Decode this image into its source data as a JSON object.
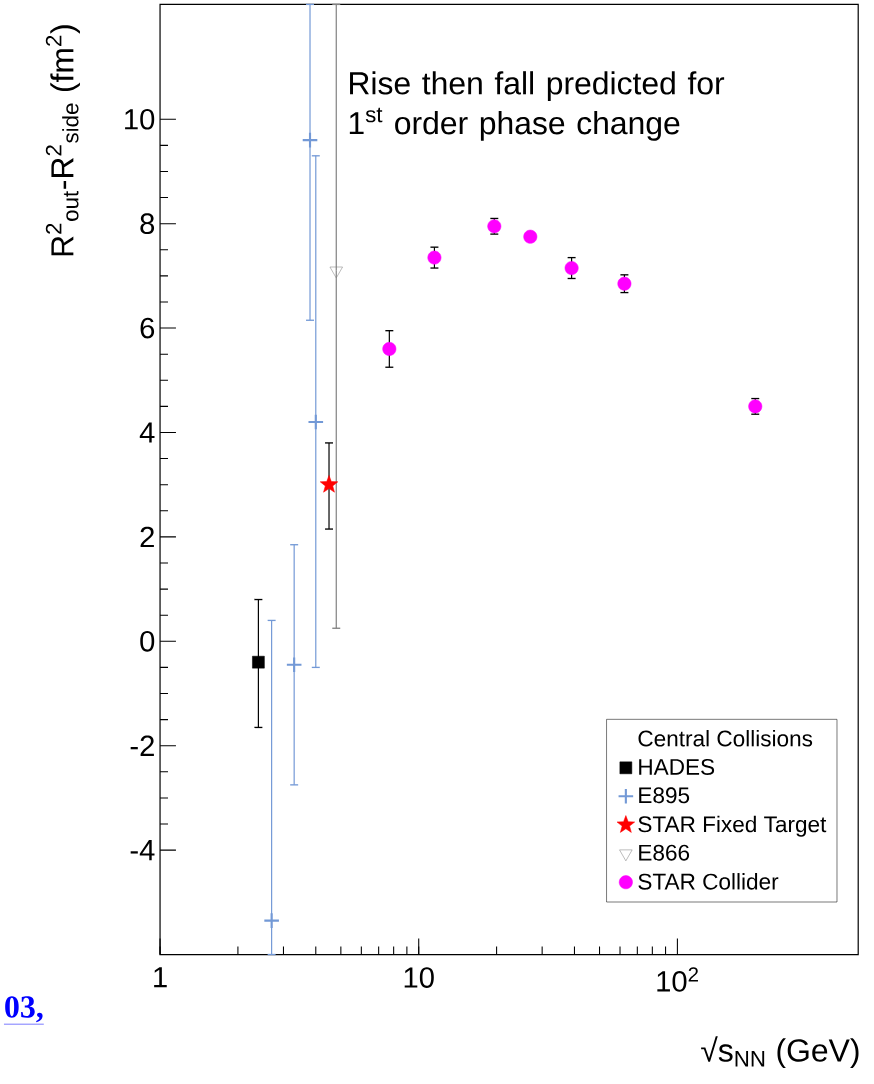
{
  "chart_data": {
    "type": "scatter",
    "xlabel": "√s$_{NN}$ (GeV)",
    "ylabel": "R$^{2}$$_{out}$-R$^{2}$$_{side}$ (fm$^{2}$)",
    "log": "x",
    "xlim": [
      1,
      500
    ],
    "xticks": [
      1,
      10,
      {
        "value": 100,
        "label": "10$^{2}$"
      }
    ],
    "ylim": [
      -6,
      12.2
    ],
    "yticks": [
      -4,
      -2,
      0,
      2,
      4,
      6,
      8,
      10
    ],
    "legend": "bottom right",
    "legend_title": "Central Collisions",
    "annotations": [
      "Rise then fall predicted for 1$^{st}$ order phase change",
      "03,"
    ],
    "series": [
      {
        "name": "HADES",
        "color": "#000000",
        "marker": "square",
        "x": [
          2.4
        ],
        "values": [
          -0.4
        ],
        "errors": [
          [
            -1.65,
            0.8
          ]
        ]
      },
      {
        "name": "E895",
        "color": "#7399d6",
        "marker": "cross",
        "x": [
          2.7,
          3.3,
          3.8,
          4.0
        ],
        "values": [
          -5.35,
          -0.45,
          9.6,
          4.2
        ],
        "errors": [
          [
            -6,
            0.4
          ],
          [
            -2.75,
            1.85
          ],
          [
            6.15,
            12.2
          ],
          [
            -0.5,
            9.3
          ]
        ]
      },
      {
        "name": "STAR Fixed Target",
        "color": "#ff0000",
        "marker": "star",
        "x": [
          4.5
        ],
        "values": [
          3.0
        ],
        "errors": [
          [
            2.15,
            3.8
          ]
        ]
      },
      {
        "name": "E866",
        "color": "#808080",
        "marker": "triangle",
        "x": [
          4.8
        ],
        "values": [
          7.1
        ],
        "errors": [
          [
            0.25,
            12.2
          ]
        ]
      },
      {
        "name": "STAR Collider",
        "color": "#ff00ff",
        "marker": "circle",
        "x": [
          7.7,
          11.5,
          19.6,
          27,
          39,
          62.4,
          200
        ],
        "values": [
          5.6,
          7.35,
          7.95,
          7.75,
          7.15,
          6.85,
          4.5
        ],
        "errors": [
          0.35,
          0.2,
          0.15,
          null,
          0.2,
          0.17,
          0.15
        ]
      }
    ]
  }
}
